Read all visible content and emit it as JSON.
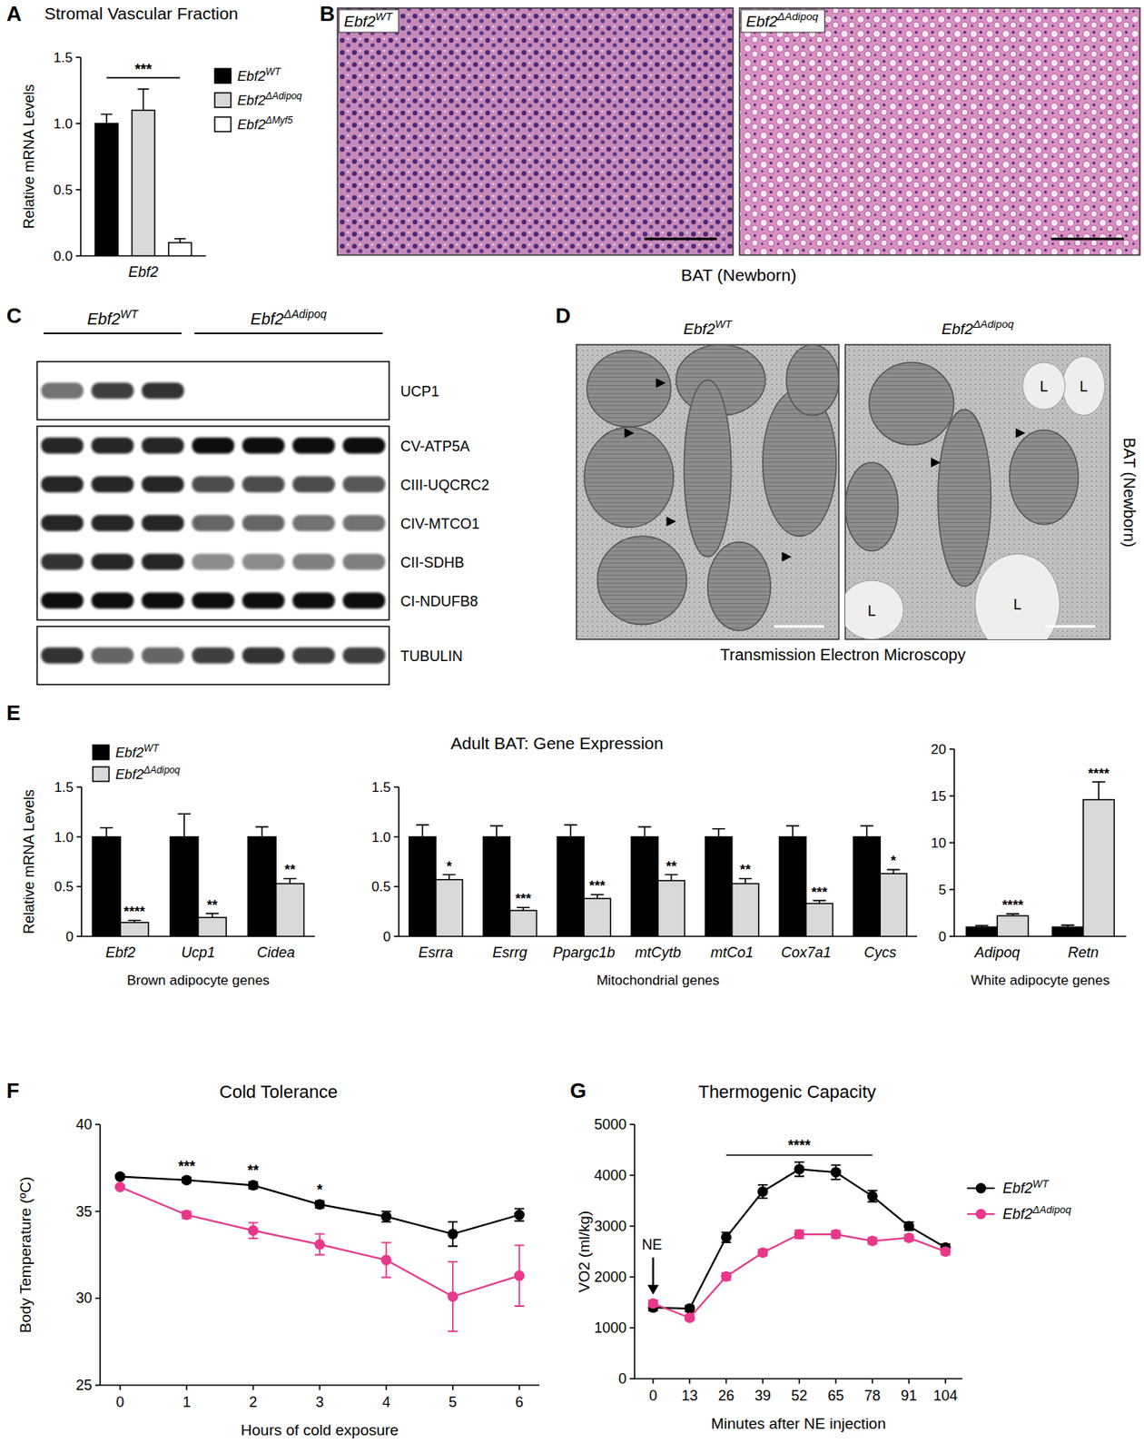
{
  "chart_data": [
    {
      "panel": "A",
      "type": "bar",
      "title": "Stromal Vascular Fraction",
      "categories": [
        "Ebf2"
      ],
      "ylabel": "Relative mRNA Levels",
      "ylim": [
        0,
        1.5
      ],
      "yticks": [
        {
          "value": 0,
          "label": "0.0"
        },
        0.5,
        {
          "value": 1,
          "label": "1.0"
        },
        1.5
      ],
      "legend": "right",
      "significance": "***",
      "series": [
        {
          "name": "Ebf2WT",
          "color": "#000000",
          "values": [
            1.0
          ],
          "errors": [
            0.07
          ]
        },
        {
          "name": "Ebf2ΔAdipoq",
          "color": "#d9d9d9",
          "values": [
            1.1
          ],
          "errors": [
            0.16
          ]
        },
        {
          "name": "Ebf2ΔMyf5",
          "color": "#ffffff",
          "values": [
            0.1
          ],
          "errors": [
            0.03
          ]
        }
      ]
    },
    {
      "panel": "E",
      "type": "bar",
      "title": "Adult BAT: Gene Expression",
      "categories": [
        "Ebf2",
        "Ucp1",
        "Cidea"
      ],
      "xlabel": "Brown adipocyte genes",
      "ylabel": "Relative mRNA Levels",
      "ylim": [
        0,
        1.5
      ],
      "yticks": [
        0,
        0.5,
        {
          "value": 1,
          "label": "1.0"
        },
        1.5
      ],
      "legend": "top-left",
      "significance": [
        "****",
        "**",
        "**"
      ],
      "series": [
        {
          "name": "Ebf2WT",
          "color": "#000000",
          "values": [
            1.0,
            1.0,
            1.0
          ],
          "errors": [
            0.09,
            0.23,
            0.1
          ]
        },
        {
          "name": "Ebf2ΔAdipoq",
          "color": "#d9d9d9",
          "values": [
            0.14,
            0.19,
            0.53
          ],
          "errors": [
            0.02,
            0.04,
            0.05
          ]
        }
      ]
    },
    {
      "type": "bar",
      "categories": [
        "Esrra",
        "Esrrg",
        "Ppargc1b",
        "mtCytb",
        "mtCo1",
        "Cox7a1",
        "Cycs"
      ],
      "xlabel": "Mitochondrial genes",
      "ylim": [
        0,
        1.5
      ],
      "yticks": [
        0,
        0.5,
        {
          "value": 1,
          "label": "1.0"
        },
        1.5
      ],
      "significance": [
        "*",
        "***",
        "***",
        "**",
        "**",
        "***",
        "*"
      ],
      "series": [
        {
          "color": "#000000",
          "values": [
            1.0,
            1.0,
            1.0,
            1.0,
            1.0,
            1.0,
            1.0
          ],
          "errors": [
            0.12,
            0.11,
            0.12,
            0.1,
            0.08,
            0.11,
            0.11
          ]
        },
        {
          "color": "#d9d9d9",
          "values": [
            0.57,
            0.26,
            0.38,
            0.56,
            0.53,
            0.33,
            0.63
          ],
          "errors": [
            0.05,
            0.03,
            0.04,
            0.06,
            0.05,
            0.03,
            0.04
          ]
        }
      ]
    },
    {
      "type": "bar",
      "categories": [
        "Adipoq",
        "Retn"
      ],
      "xlabel": "White adipocyte genes",
      "ylim": [
        0,
        20
      ],
      "yticks": [
        0,
        5,
        10,
        15,
        20
      ],
      "significance": [
        "****",
        "****"
      ],
      "series": [
        {
          "color": "#000000",
          "values": [
            1.0,
            1.0
          ],
          "errors": [
            0.15,
            0.2
          ]
        },
        {
          "color": "#d9d9d9",
          "values": [
            2.2,
            14.6
          ],
          "errors": [
            0.2,
            1.9
          ]
        }
      ]
    },
    {
      "panel": "F",
      "type": "line",
      "title": "Cold Tolerance",
      "xlabel": "Hours of cold exposure",
      "ylabel": "Body Temperature  (ºC)",
      "x": [
        0,
        1,
        2,
        3,
        4,
        5,
        6
      ],
      "xlim": [
        -0.3,
        6.3
      ],
      "xticks": [
        0,
        1,
        2,
        3,
        4,
        5,
        6
      ],
      "ylim": [
        25,
        40
      ],
      "yticks": [
        25,
        30,
        35,
        40
      ],
      "marker": "circle",
      "significance": [
        null,
        "***",
        "**",
        "*",
        null,
        null,
        null
      ],
      "series": [
        {
          "color": "#000000",
          "values": [
            37.0,
            36.8,
            36.5,
            35.4,
            34.7,
            33.7,
            34.8
          ],
          "errors": [
            0.1,
            0.15,
            0.2,
            0.2,
            0.3,
            0.7,
            0.35
          ]
        },
        {
          "color": "#e8388a",
          "values": [
            36.4,
            34.8,
            33.9,
            33.1,
            32.2,
            30.1,
            31.3
          ],
          "errors": [
            0.1,
            0.2,
            0.45,
            0.6,
            1.0,
            2.0,
            1.75
          ]
        }
      ]
    },
    {
      "panel": "G",
      "type": "line",
      "title": "Thermogenic Capacity",
      "xlabel": "Minutes after NE injection",
      "ylabel": "VO2 (ml/kg)",
      "x": [
        0,
        13,
        26,
        39,
        52,
        65,
        78,
        91,
        104
      ],
      "xlim": [
        -6.6,
        110
      ],
      "xticks": [
        0,
        13,
        26,
        39,
        52,
        65,
        78,
        91,
        104
      ],
      "ylim": [
        0,
        5000
      ],
      "yticks": [
        0,
        1000,
        2000,
        3000,
        4000,
        5000
      ],
      "marker": "circle",
      "legend": "right",
      "annotation": {
        "text": "NE",
        "x": 0
      },
      "significance": {
        "text": "****",
        "x_from": 26,
        "x_to": 78
      },
      "series": [
        {
          "name": "Ebf2WT",
          "color": "#000000",
          "values": [
            1400,
            1380,
            2780,
            3680,
            4120,
            4060,
            3590,
            3000,
            2580
          ],
          "errors": [
            60,
            60,
            100,
            130,
            140,
            140,
            110,
            80,
            70
          ]
        },
        {
          "name": "Ebf2ΔAdipoq",
          "color": "#e8388a",
          "values": [
            1480,
            1200,
            2010,
            2480,
            2840,
            2840,
            2710,
            2770,
            2500
          ],
          "errors": [
            60,
            50,
            70,
            60,
            80,
            70,
            60,
            60,
            60
          ]
        }
      ]
    }
  ],
  "micrographs": [
    {
      "panel": "B",
      "labels": [
        "Ebf2WT",
        "Ebf2ΔAdipoq"
      ],
      "caption": "BAT (Newborn)",
      "stain": "he"
    },
    {
      "panel": "D",
      "labels": [
        "Ebf2WT",
        "Ebf2ΔAdipoq"
      ],
      "caption": "Transmission Electron Microscopy",
      "side_label": "BAT (Newborn)",
      "stain": "tem",
      "lipid_labels": [
        "L",
        "L",
        "L",
        "L"
      ]
    }
  ],
  "western_blot": {
    "panel": "C",
    "groups": [
      {
        "label": "Ebf2WT",
        "lanes": 3
      },
      {
        "label": "Ebf2ΔAdipoq",
        "lanes": 4
      }
    ],
    "blocks": [
      [
        {
          "label": "UCP1",
          "intensity": [
            0.55,
            0.8,
            0.85,
            0,
            0,
            0,
            0
          ]
        }
      ],
      [
        {
          "label": "CV-ATP5A",
          "intensity": [
            0.9,
            0.9,
            0.9,
            1,
            1,
            1,
            1
          ]
        },
        {
          "label": "CIII-UQCRC2",
          "intensity": [
            0.9,
            0.9,
            0.9,
            0.75,
            0.75,
            0.75,
            0.7
          ]
        },
        {
          "label": "CIV-MTCO1",
          "intensity": [
            0.9,
            0.9,
            0.9,
            0.6,
            0.6,
            0.55,
            0.55
          ]
        },
        {
          "label": "CII-SDHB",
          "intensity": [
            0.85,
            0.9,
            0.9,
            0.45,
            0.45,
            0.5,
            0.5
          ]
        },
        {
          "label": "CI-NDUFB8",
          "intensity": [
            1,
            1,
            1,
            1,
            1,
            1,
            1
          ]
        }
      ],
      [
        {
          "label": "TUBULIN",
          "intensity": [
            0.85,
            0.65,
            0.65,
            0.8,
            0.85,
            0.8,
            0.8
          ]
        }
      ]
    ]
  }
}
